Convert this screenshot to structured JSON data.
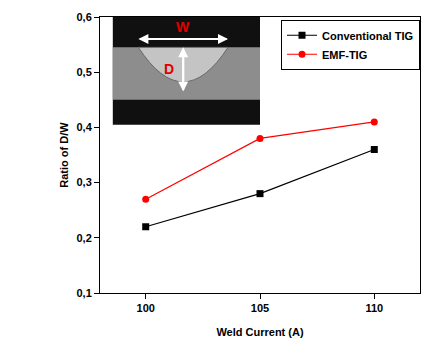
{
  "chart_data": {
    "type": "line",
    "x_label": "Weld Current (A)",
    "y_label": "Ratio of D/W",
    "x": [
      100,
      105,
      110
    ],
    "series": [
      {
        "name": "Conventional TIG",
        "color": "#000000",
        "marker": "square",
        "values": [
          0.22,
          0.28,
          0.36
        ]
      },
      {
        "name": "EMF-TIG",
        "color": "#ff0000",
        "marker": "circle",
        "values": [
          0.27,
          0.38,
          0.41
        ]
      }
    ],
    "xlim": [
      98,
      112
    ],
    "xticks": [
      100,
      105,
      110
    ],
    "ylim": [
      0.1,
      0.6
    ],
    "yticks": [
      {
        "value": 0.1,
        "label": "0,1"
      },
      {
        "value": 0.2,
        "label": "0,2"
      },
      {
        "value": 0.3,
        "label": "0,3"
      },
      {
        "value": 0.4,
        "label": "0,4"
      },
      {
        "value": 0.5,
        "label": "0,5"
      },
      {
        "value": 0.6,
        "label": "0,6"
      }
    ],
    "grid": false,
    "legend": "top right",
    "annotations": [
      {
        "text": "W"
      },
      {
        "text": "D"
      }
    ]
  }
}
